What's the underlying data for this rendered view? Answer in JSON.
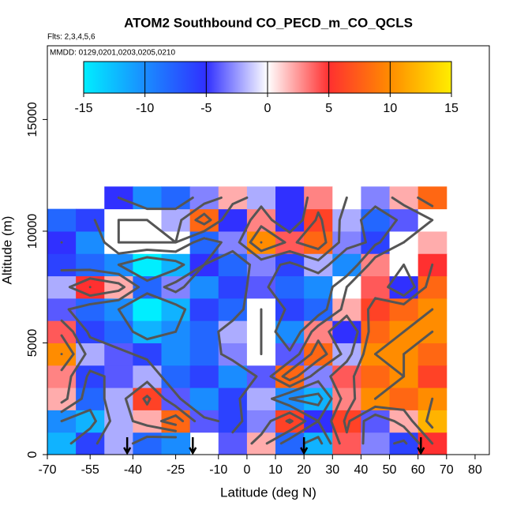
{
  "chart_data": {
    "type": "heatmap",
    "title": "ATOM2 Southbound CO_PECD_m_CO_QCLS",
    "subtitle": "Flts: 2,3,4,5,6",
    "annotation": "MMDD: 0129,0201,0203,0205,0210",
    "x_label": "Latitude (deg N)",
    "y_label": "Altitude (m)",
    "xlim": [
      -70,
      85
    ],
    "ylim": [
      0,
      18300
    ],
    "xticks": [
      -70,
      -55,
      -40,
      -25,
      -10,
      0,
      10,
      20,
      30,
      40,
      50,
      60,
      70,
      80
    ],
    "yticks": [
      0,
      5000,
      10000,
      15000
    ],
    "x": [
      -65,
      -55,
      -45,
      -35,
      -25,
      -15,
      -5,
      5,
      15,
      25,
      35,
      45,
      55,
      65
    ],
    "y": [
      500,
      1500,
      2500,
      3500,
      4500,
      5500,
      6500,
      7500,
      8500,
      9500,
      10500,
      11500
    ],
    "z": [
      [
        -12,
        -6,
        -2,
        -8,
        -10,
        null,
        -4,
        2,
        -8,
        -12,
        4,
        -3,
        -6,
        5
      ],
      [
        -10,
        -12,
        -2,
        2,
        8,
        -4,
        -6,
        -3,
        6,
        -5,
        6,
        -4,
        2,
        12
      ],
      [
        2,
        -8,
        -2,
        6,
        -4,
        -10,
        -6,
        -2,
        -10,
        -12,
        3,
        10,
        8,
        10
      ],
      [
        3,
        -6,
        -4,
        -2,
        -8,
        -6,
        -10,
        -4,
        8,
        -3,
        4,
        8,
        10,
        6
      ],
      [
        10,
        -2,
        -4,
        -6,
        -10,
        -8,
        -3,
        0,
        -4,
        8,
        -2,
        10,
        10,
        8
      ],
      [
        4,
        -6,
        -8,
        -12,
        -10,
        -8,
        -2,
        0,
        -10,
        3,
        -5,
        8,
        10,
        10
      ],
      [
        -4,
        -8,
        -10,
        -15,
        -12,
        -6,
        -8,
        0,
        -6,
        -8,
        2,
        6,
        8,
        10
      ],
      [
        -2,
        5,
        2,
        -8,
        -3,
        -10,
        -6,
        -4,
        -8,
        -10,
        0,
        4,
        -5,
        8
      ],
      [
        -6,
        -8,
        -10,
        -15,
        -12,
        -5,
        -8,
        -3,
        -6,
        -2,
        -10,
        3,
        0,
        5
      ],
      [
        -5,
        -10,
        0,
        0,
        0,
        -8,
        -3,
        10,
        4,
        8,
        -3,
        -6,
        0,
        2
      ],
      [
        -8,
        -6,
        0,
        0,
        -2,
        8,
        -5,
        3,
        -5,
        6,
        -2,
        -8,
        -4,
        0
      ],
      [
        null,
        null,
        -5,
        -10,
        -8,
        -3,
        2,
        -2,
        -5,
        3,
        0,
        -3,
        2,
        8
      ]
    ],
    "clim": [
      -15,
      15
    ],
    "colorscale": [
      "#00eeff",
      "#1a8cff",
      "#3030ff",
      "#ffffff",
      "#ff3030",
      "#ff8c00",
      "#ffee00"
    ],
    "colorbar_ticks": [
      -15,
      -10,
      -5,
      0,
      5,
      10,
      15
    ],
    "contour_levels": [
      -15,
      -10,
      -5,
      0,
      5,
      10
    ],
    "contour_color": "#555555",
    "markers": [
      -42,
      -19,
      20,
      61
    ]
  }
}
